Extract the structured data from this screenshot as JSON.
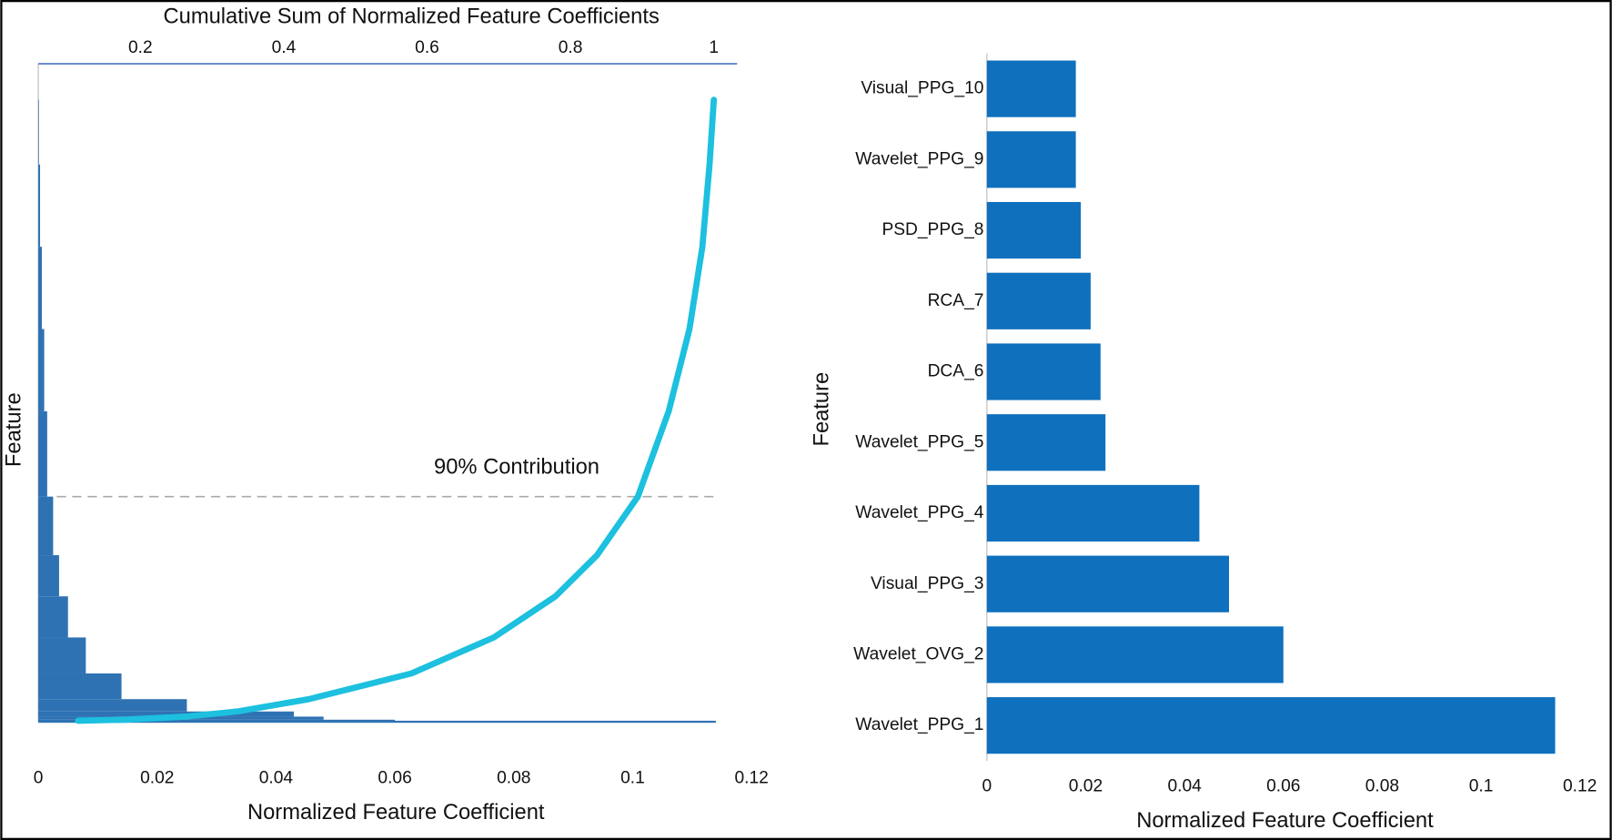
{
  "chart_data": [
    {
      "type": "pareto",
      "x2label": "Cumulative Sum of Normalized Feature Coefficients",
      "xlabel": "Normalized Feature Coefficient",
      "ylabel": "Feature",
      "annotation": "90% Contribution",
      "threshold": 219,
      "y": [
        1,
        2,
        5,
        10,
        22,
        47,
        82,
        122,
        162,
        219,
        302,
        382,
        462,
        542,
        605
      ],
      "values": [
        0.114,
        0.06,
        0.048,
        0.043,
        0.025,
        0.014,
        0.008,
        0.005,
        0.0035,
        0.0025,
        0.0015,
        0.001,
        0.0006,
        0.0003,
        0.0001
      ],
      "cumulative": [
        0.113,
        0.177,
        0.263,
        0.335,
        0.435,
        0.578,
        0.693,
        0.779,
        0.837,
        0.894,
        0.937,
        0.966,
        0.984,
        0.994,
        1.0
      ],
      "xlim": [
        0,
        0.12
      ],
      "xticks": [
        0,
        0.02,
        0.04,
        0.06,
        0.08,
        0.1,
        0.12
      ],
      "x2lim": [
        0.0575,
        1.0325
      ],
      "x2ticks": [
        0.2,
        0.4,
        0.6,
        0.8,
        1
      ],
      "ylim": [
        0,
        640
      ],
      "bar_color": "#2f72b3",
      "line_color": "#1dc0de"
    },
    {
      "type": "barh",
      "xlabel": "Normalized Feature Coefficient",
      "ylabel": "Feature",
      "categories": [
        "Wavelet_PPG_1",
        "Wavelet_OVG_2",
        "Visual_PPG_3",
        "Wavelet_PPG_4",
        "Wavelet_PPG_5",
        "DCA_6",
        "RCA_7",
        "PSD_PPG_8",
        "Wavelet_PPG_9",
        "Visual_PPG_10"
      ],
      "values": [
        0.115,
        0.06,
        0.049,
        0.043,
        0.024,
        0.023,
        0.021,
        0.019,
        0.018,
        0.018
      ],
      "xlim": [
        0,
        0.12
      ],
      "xticks": [
        0,
        0.02,
        0.04,
        0.06,
        0.08,
        0.1,
        0.12
      ],
      "color": "#0f70bd"
    }
  ]
}
